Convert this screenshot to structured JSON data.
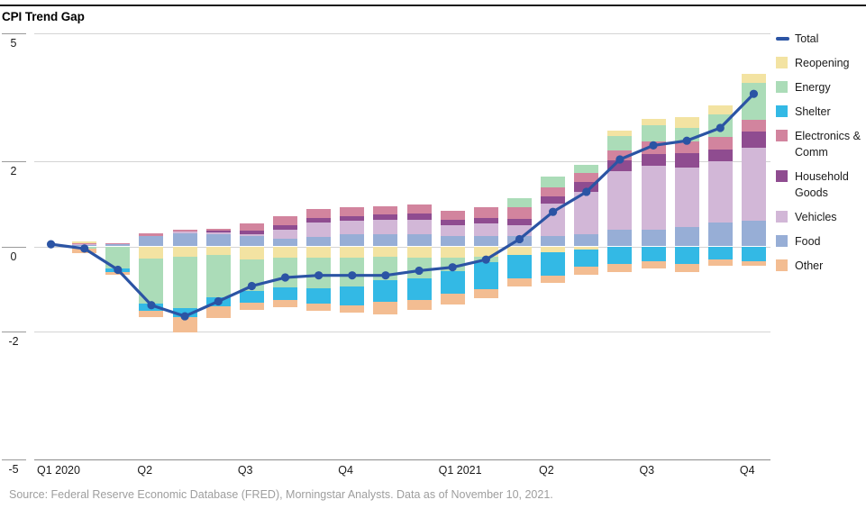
{
  "chart": {
    "title": "CPI Trend Gap",
    "source": "Source: Federal Reserve Economic Database (FRED), Morningstar Analysts. Data as of November 10, 2021."
  },
  "chart_data": {
    "type": "combo-stacked-bar-line",
    "title": "CPI Trend Gap",
    "xlabel": "",
    "ylabel": "",
    "ylim": [
      -5,
      5
    ],
    "y_ticks": [
      5,
      2,
      0,
      -2,
      -5
    ],
    "grid": true,
    "legend_position": "right",
    "months": [
      "Jan 2020",
      "Feb 2020",
      "Mar 2020",
      "Apr 2020",
      "May 2020",
      "Jun 2020",
      "Jul 2020",
      "Aug 2020",
      "Sep 2020",
      "Oct 2020",
      "Nov 2020",
      "Dec 2020",
      "Jan 2021",
      "Feb 2021",
      "Mar 2021",
      "Apr 2021",
      "May 2021",
      "Jun 2021",
      "Jul 2021",
      "Aug 2021",
      "Sep 2021",
      "Oct 2021"
    ],
    "x_quarter_labels": [
      {
        "label": "Q1 2020",
        "month_index": 0
      },
      {
        "label": "Q2",
        "month_index": 3
      },
      {
        "label": "Q3",
        "month_index": 6
      },
      {
        "label": "Q4",
        "month_index": 9
      },
      {
        "label": "Q1 2021",
        "month_index": 12
      },
      {
        "label": "Q2",
        "month_index": 15
      },
      {
        "label": "Q3",
        "month_index": 18
      },
      {
        "label": "Q4",
        "month_index": 21
      }
    ],
    "line_series": {
      "name": "Total",
      "color": "#2b54a4",
      "values": [
        0.05,
        -0.05,
        -0.55,
        -1.38,
        -1.64,
        -1.29,
        -0.93,
        -0.73,
        -0.68,
        -0.68,
        -0.68,
        -0.57,
        -0.49,
        -0.31,
        0.17,
        0.81,
        1.28,
        2.04,
        2.37,
        2.48,
        2.78,
        3.58
      ]
    },
    "bar_series": [
      {
        "name": "Reopening",
        "color": "#f3e3a2",
        "values": [
          0,
          0.03,
          0,
          -0.28,
          -0.25,
          -0.2,
          -0.31,
          -0.27,
          -0.27,
          -0.27,
          -0.25,
          -0.26,
          -0.27,
          -0.24,
          -0.2,
          -0.13,
          -0.07,
          0.11,
          0.15,
          0.26,
          0.21,
          0.21
        ]
      },
      {
        "name": "Energy",
        "color": "#abdcb8",
        "values": [
          0,
          -0.06,
          -0.52,
          -1.06,
          -1.2,
          -1.0,
          -0.74,
          -0.7,
          -0.72,
          -0.67,
          -0.55,
          -0.5,
          -0.32,
          -0.14,
          0.21,
          0.25,
          0.19,
          0.35,
          0.38,
          0.31,
          0.53,
          0.85
        ]
      },
      {
        "name": "Shelter",
        "color": "#33b9e5",
        "values": [
          0,
          0,
          -0.08,
          -0.18,
          -0.22,
          -0.21,
          -0.28,
          -0.29,
          -0.35,
          -0.45,
          -0.49,
          -0.5,
          -0.53,
          -0.62,
          -0.56,
          -0.55,
          -0.41,
          -0.42,
          -0.35,
          -0.42,
          -0.3,
          -0.35
        ]
      },
      {
        "name": "Electronics & Comm",
        "color": "#d2849e",
        "values": [
          0,
          0.02,
          0.03,
          0.05,
          0.05,
          0.06,
          0.18,
          0.21,
          0.21,
          0.21,
          0.21,
          0.21,
          0.21,
          0.25,
          0.28,
          0.21,
          0.21,
          0.24,
          0.3,
          0.28,
          0.28,
          0.28
        ]
      },
      {
        "name": "Household Goods",
        "color": "#8f4c90",
        "values": [
          0,
          0,
          0,
          0,
          0,
          0.03,
          0.07,
          0.11,
          0.1,
          0.11,
          0.11,
          0.14,
          0.14,
          0.14,
          0.14,
          0.18,
          0.24,
          0.25,
          0.28,
          0.32,
          0.28,
          0.38
        ]
      },
      {
        "name": "Vehicles",
        "color": "#d2b7d7",
        "values": [
          0,
          0.03,
          0,
          0,
          0.05,
          0.05,
          0.05,
          0.21,
          0.35,
          0.32,
          0.34,
          0.35,
          0.24,
          0.28,
          0.25,
          0.75,
          0.99,
          1.37,
          1.5,
          1.4,
          1.45,
          1.72
        ]
      },
      {
        "name": "Food",
        "color": "#97aed6",
        "values": [
          0,
          0.03,
          0.05,
          0.25,
          0.3,
          0.28,
          0.24,
          0.18,
          0.22,
          0.28,
          0.29,
          0.28,
          0.25,
          0.25,
          0.25,
          0.25,
          0.28,
          0.39,
          0.39,
          0.46,
          0.55,
          0.6
        ]
      },
      {
        "name": "Other",
        "color": "#f3bd92",
        "values": [
          0,
          -0.1,
          -0.06,
          -0.15,
          -0.35,
          -0.28,
          -0.17,
          -0.17,
          -0.18,
          -0.17,
          -0.3,
          -0.24,
          -0.24,
          -0.22,
          -0.18,
          -0.17,
          -0.18,
          -0.18,
          -0.17,
          -0.18,
          -0.15,
          -0.1
        ]
      }
    ],
    "positive_stack_order": [
      "Food",
      "Vehicles",
      "Household Goods",
      "Electronics & Comm",
      "Energy",
      "Reopening"
    ],
    "negative_stack_order": [
      "Reopening",
      "Energy",
      "Shelter",
      "Other"
    ],
    "legend_entries": [
      "Total",
      "Reopening",
      "Energy",
      "Shelter",
      "Electronics & Comm",
      "Household Goods",
      "Vehicles",
      "Food",
      "Other"
    ]
  }
}
